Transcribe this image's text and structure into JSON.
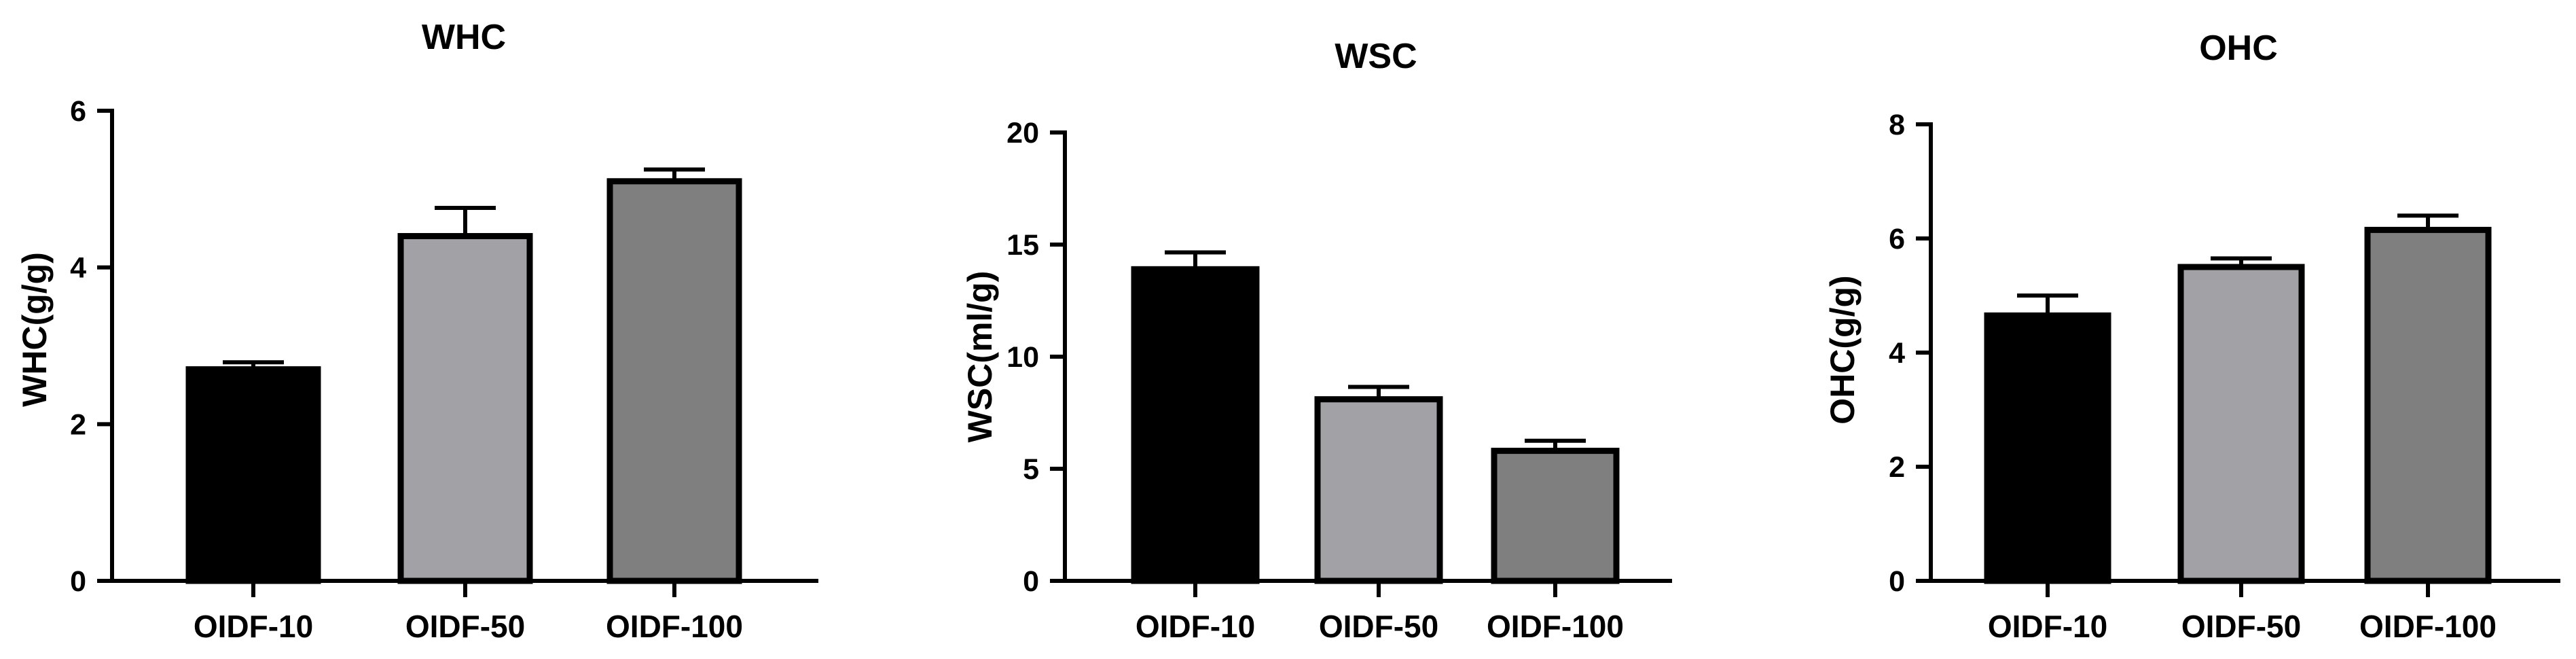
{
  "chart_data": [
    {
      "type": "bar",
      "title": "WHC",
      "xlabel": "",
      "ylabel": "WHC(g/g)",
      "ylim": [
        0,
        6
      ],
      "yticks": [
        0,
        2,
        4,
        6
      ],
      "categories": [
        "OIDF-10",
        "OIDF-50",
        "OIDF-100"
      ],
      "values": [
        2.7,
        4.4,
        5.1
      ],
      "errors": [
        0.09,
        0.36,
        0.15
      ],
      "colors": [
        "#000000",
        "#a2a1a6",
        "#7f7f7f"
      ]
    },
    {
      "type": "bar",
      "title": "WSC",
      "xlabel": "",
      "ylabel": "WSC(ml/g)",
      "ylim": [
        0,
        20
      ],
      "yticks": [
        0,
        5,
        10,
        15,
        20
      ],
      "categories": [
        "OIDF-10",
        "OIDF-50",
        "OIDF-100"
      ],
      "values": [
        13.9,
        8.1,
        5.8
      ],
      "errors": [
        0.75,
        0.55,
        0.45
      ],
      "colors": [
        "#000000",
        "#a2a1a6",
        "#7f7f7f"
      ]
    },
    {
      "type": "bar",
      "title": "OHC",
      "xlabel": "",
      "ylabel": "OHC(g/g)",
      "ylim": [
        0,
        8
      ],
      "yticks": [
        0,
        2,
        4,
        6,
        8
      ],
      "categories": [
        "OIDF-10",
        "OIDF-50",
        "OIDF-100"
      ],
      "values": [
        4.65,
        5.5,
        6.15
      ],
      "errors": [
        0.35,
        0.15,
        0.25
      ],
      "colors": [
        "#000000",
        "#a2a1a6",
        "#7f7f7f"
      ]
    }
  ]
}
